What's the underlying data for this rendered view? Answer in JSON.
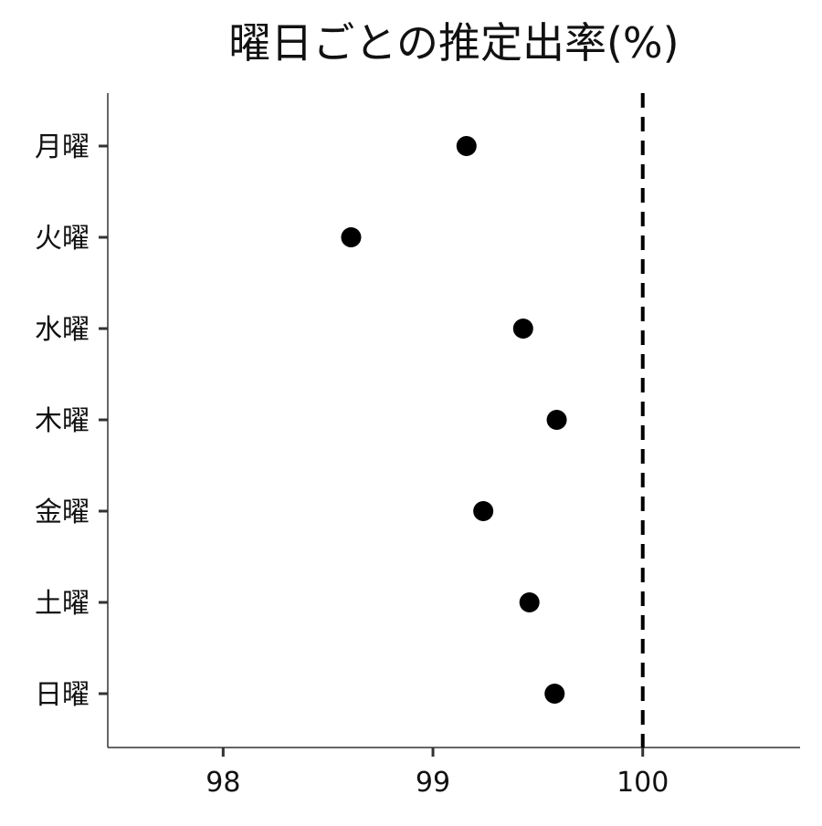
{
  "chart_data": {
    "type": "scatter",
    "title": "曜日ごとの推定出率(%)",
    "xlabel": "",
    "ylabel": "",
    "xlim": [
      97.45,
      100.75
    ],
    "x_ticks": [
      98,
      99,
      100
    ],
    "x_tick_labels": [
      "98",
      "99",
      "100"
    ],
    "categories": [
      "月曜",
      "火曜",
      "水曜",
      "木曜",
      "金曜",
      "土曜",
      "日曜"
    ],
    "values": [
      99.16,
      98.61,
      99.43,
      99.59,
      99.24,
      99.46,
      99.58
    ],
    "reference_line": {
      "x": 100,
      "style": "dashed"
    },
    "grid": false,
    "legend": "none",
    "colors": {
      "points": "#000000",
      "axis": "#333333",
      "reference": "#000000"
    }
  }
}
